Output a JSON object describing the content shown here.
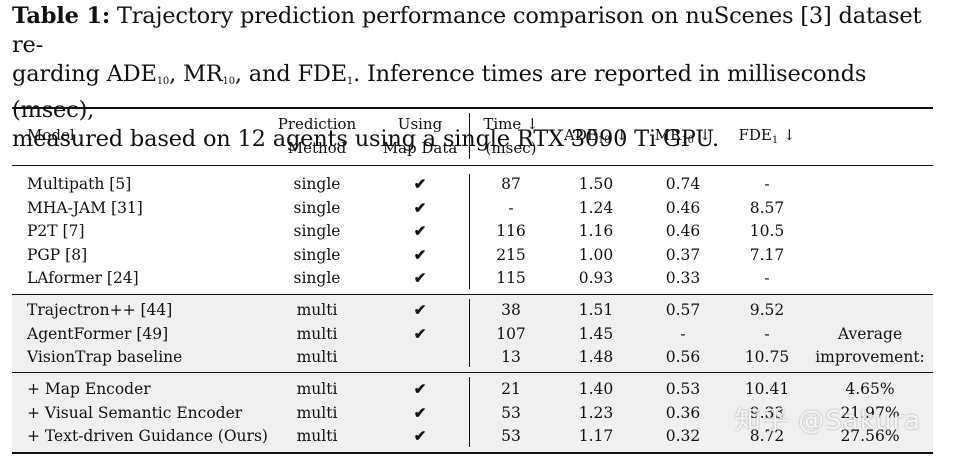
{
  "caption": {
    "label": "Table 1:",
    "line1": "Trajectory prediction performance comparison on nuScenes [3] dataset re-",
    "line2a": "garding ADE",
    "line2sub1": "10",
    "line2b": ", MR",
    "line2sub2": "10",
    "line2c": ", and FDE",
    "line2sub3": "1",
    "line2d": ". Inference times are reported in milliseconds (msec),",
    "line3": "measured based on 12 agents using a single RTX 3090 Ti GPU."
  },
  "headers": {
    "model": "Model",
    "prediction_1": "Prediction",
    "prediction_2": "Method",
    "map_1": "Using",
    "map_2": "Map Data",
    "time_1": "Time ↓",
    "time_2": "(msec)",
    "ade": "ADE",
    "ade_sub": "10",
    "ade_arrow": " ↓",
    "mr": "MR",
    "mr_sub": "10",
    "mr_arrow": " ↓",
    "fde": "FDE",
    "fde_sub": "1",
    "fde_arrow": " ↓"
  },
  "group1": [
    {
      "model": "Multipath [5]",
      "method": "single",
      "map": "✔",
      "time": "87",
      "ade": "1.50",
      "mr": "0.74",
      "fde": "-"
    },
    {
      "model": "MHA-JAM [31]",
      "method": "single",
      "map": "✔",
      "time": "-",
      "ade": "1.24",
      "mr": "0.46",
      "fde": "8.57"
    },
    {
      "model": "P2T [7]",
      "method": "single",
      "map": "✔",
      "time": "116",
      "ade": "1.16",
      "mr": "0.46",
      "fde": "10.5"
    },
    {
      "model": "PGP [8]",
      "method": "single",
      "map": "✔",
      "time": "215",
      "ade": "1.00",
      "mr": "0.37",
      "fde": "7.17"
    },
    {
      "model": "LAformer [24]",
      "method": "single",
      "map": "✔",
      "time": "115",
      "ade": "0.93",
      "mr": "0.33",
      "fde": "-"
    }
  ],
  "group2": [
    {
      "model": "Trajectron++ [44]",
      "method": "multi",
      "map": "✔",
      "time": "38",
      "ade": "1.51",
      "mr": "0.57",
      "fde": "9.52",
      "extra": ""
    },
    {
      "model": "AgentFormer [49]",
      "method": "multi",
      "map": "✔",
      "time": "107",
      "ade": "1.45",
      "mr": "-",
      "fde": "-",
      "extra": "Average"
    },
    {
      "model": "VisionTrap baseline",
      "method": "multi",
      "map": "",
      "time": "13",
      "ade": "1.48",
      "mr": "0.56",
      "fde": "10.75",
      "extra": "improvement:"
    }
  ],
  "group3": [
    {
      "model": "+ Map Encoder",
      "method": "multi",
      "map": "✔",
      "time": "21",
      "ade": "1.40",
      "mr": "0.53",
      "fde": "10.41",
      "extra": "4.65%"
    },
    {
      "model": "+ Visual Semantic Encoder",
      "method": "multi",
      "map": "✔",
      "time": "53",
      "ade": "1.23",
      "mr": "0.36",
      "fde": "9.33",
      "extra": "21.97%"
    },
    {
      "model": "+ Text-driven Guidance (Ours)",
      "method": "multi",
      "map": "✔",
      "time": "53",
      "ade": "1.17",
      "mr": "0.32",
      "fde": "8.72",
      "extra": "27.56%"
    }
  ],
  "watermark": "知乎 @Sakura"
}
